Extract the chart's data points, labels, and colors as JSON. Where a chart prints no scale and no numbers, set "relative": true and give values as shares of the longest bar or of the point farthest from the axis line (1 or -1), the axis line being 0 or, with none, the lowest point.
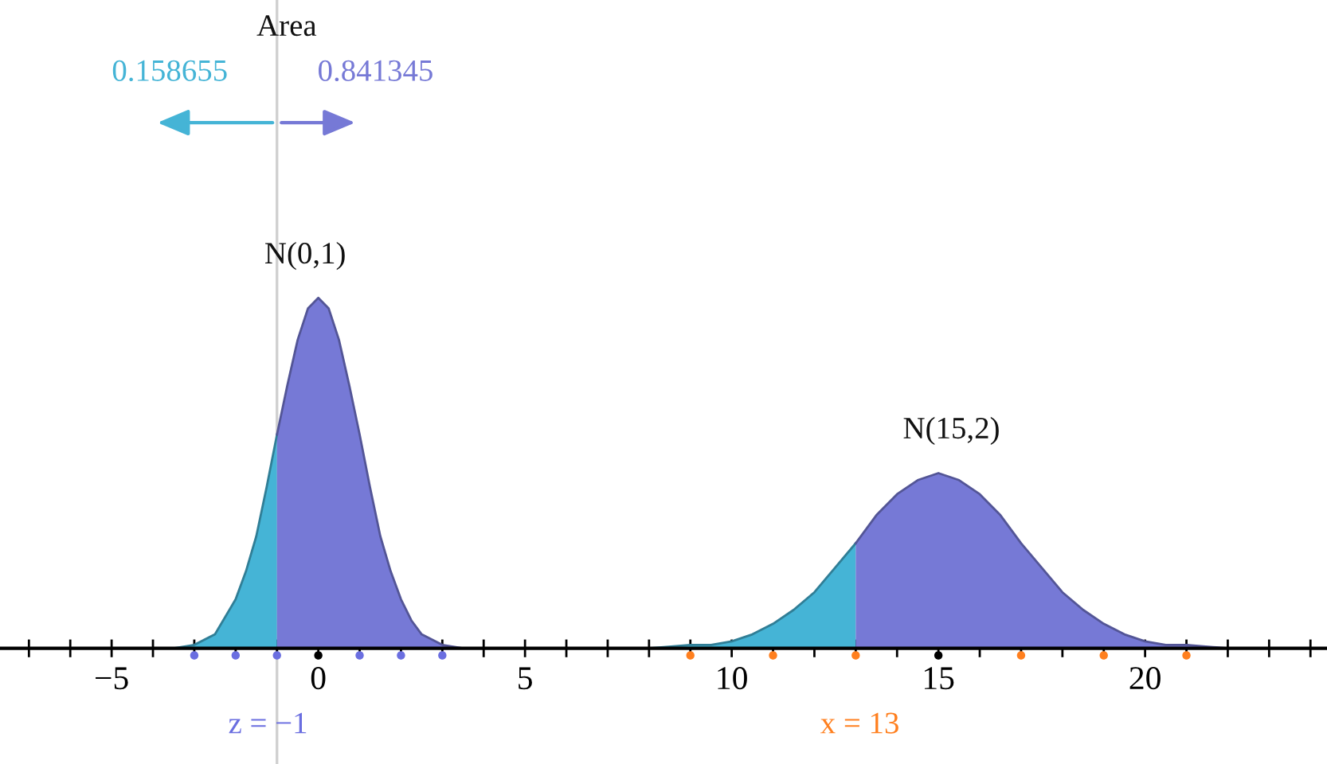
{
  "chart_data": {
    "type": "area",
    "relative": true,
    "xlim": [
      -7.7,
      24.4
    ],
    "xticks": [
      {
        "value": -7,
        "label": null
      },
      {
        "value": -6,
        "label": null
      },
      {
        "value": -5,
        "label": "−5"
      },
      {
        "value": -4,
        "label": null
      },
      {
        "value": -3,
        "label": null
      },
      {
        "value": -2,
        "label": null
      },
      {
        "value": -1,
        "label": null
      },
      0,
      {
        "value": 1,
        "label": null
      },
      {
        "value": 2,
        "label": null
      },
      {
        "value": 3,
        "label": null
      },
      {
        "value": 4,
        "label": null
      },
      5,
      {
        "value": 6,
        "label": null
      },
      {
        "value": 7,
        "label": null
      },
      {
        "value": 8,
        "label": null
      },
      {
        "value": 9,
        "label": null
      },
      10,
      {
        "value": 11,
        "label": null
      },
      {
        "value": 12,
        "label": null
      },
      {
        "value": 13,
        "label": null
      },
      {
        "value": 14,
        "label": null
      },
      15,
      {
        "value": 16,
        "label": null
      },
      {
        "value": 17,
        "label": null
      },
      {
        "value": 18,
        "label": null
      },
      {
        "value": 19,
        "label": null
      },
      20,
      {
        "value": 21,
        "label": null
      },
      {
        "value": 22,
        "label": null
      },
      {
        "value": 23,
        "label": null
      },
      {
        "value": 24,
        "label": null
      }
    ],
    "tick_labels": "x",
    "grid": false,
    "legend": false,
    "series": [
      {
        "color": "#45b4d6",
        "x": [
          -4,
          -3.5,
          -3,
          -2.5,
          -2,
          -1.75,
          -1.5,
          -1.25,
          -1
        ],
        "values": [
          0,
          0,
          0.01,
          0.04,
          0.14,
          0.22,
          0.32,
          0.46,
          0.61
        ]
      },
      {
        "color": "#7679d6",
        "x": [
          -1,
          -0.75,
          -0.5,
          -0.25,
          0,
          0.25,
          0.5,
          0.75,
          1,
          1.25,
          1.5,
          1.75,
          2,
          2.25,
          2.5,
          3,
          3.5,
          4
        ],
        "values": [
          0.61,
          0.75,
          0.88,
          0.97,
          1,
          0.97,
          0.88,
          0.75,
          0.61,
          0.46,
          0.32,
          0.22,
          0.14,
          0.08,
          0.04,
          0.01,
          0,
          0
        ]
      },
      {
        "color": "#45b4d6",
        "x": [
          7,
          8,
          9,
          9.5,
          10,
          10.5,
          11,
          11.5,
          12,
          12.5,
          13
        ],
        "values": [
          0,
          0,
          0.01,
          0.01,
          0.02,
          0.04,
          0.07,
          0.11,
          0.16,
          0.23,
          0.3
        ]
      },
      {
        "color": "#7679d6",
        "x": [
          13,
          13.5,
          14,
          14.5,
          15,
          15.5,
          16,
          16.5,
          17,
          17.5,
          18,
          18.5,
          19,
          19.5,
          20,
          20.5,
          21,
          22,
          23
        ],
        "values": [
          0.3,
          0.38,
          0.44,
          0.48,
          0.5,
          0.48,
          0.44,
          0.38,
          0.3,
          0.23,
          0.16,
          0.11,
          0.07,
          0.04,
          0.02,
          0.01,
          0.01,
          0,
          0
        ]
      },
      {
        "type": "scatter",
        "marker": "circle",
        "color": "#6a6ee0",
        "x": [
          -3,
          -2,
          -1,
          1,
          2,
          3
        ],
        "values": [
          -0.02,
          -0.02,
          -0.02,
          -0.02,
          -0.02,
          -0.02
        ]
      },
      {
        "type": "scatter",
        "marker": "circle",
        "color": "#ff7f1e",
        "x": [
          9,
          11,
          13,
          17,
          19,
          21
        ],
        "values": [
          -0.02,
          -0.02,
          -0.02,
          -0.02,
          -0.02,
          -0.02
        ]
      },
      {
        "type": "scatter",
        "marker": "circle",
        "color": "#000000",
        "x": [
          0,
          15
        ],
        "values": [
          -0.02,
          -0.02
        ]
      }
    ],
    "ref_lines": [
      {
        "axis": "x",
        "value": -1,
        "color": "#d0d0d0"
      }
    ],
    "annotations": [
      "Area",
      "0.158655",
      "0.841345",
      "N(0,1)",
      "N(15,2)",
      "z = −1",
      "x = 13"
    ]
  }
}
